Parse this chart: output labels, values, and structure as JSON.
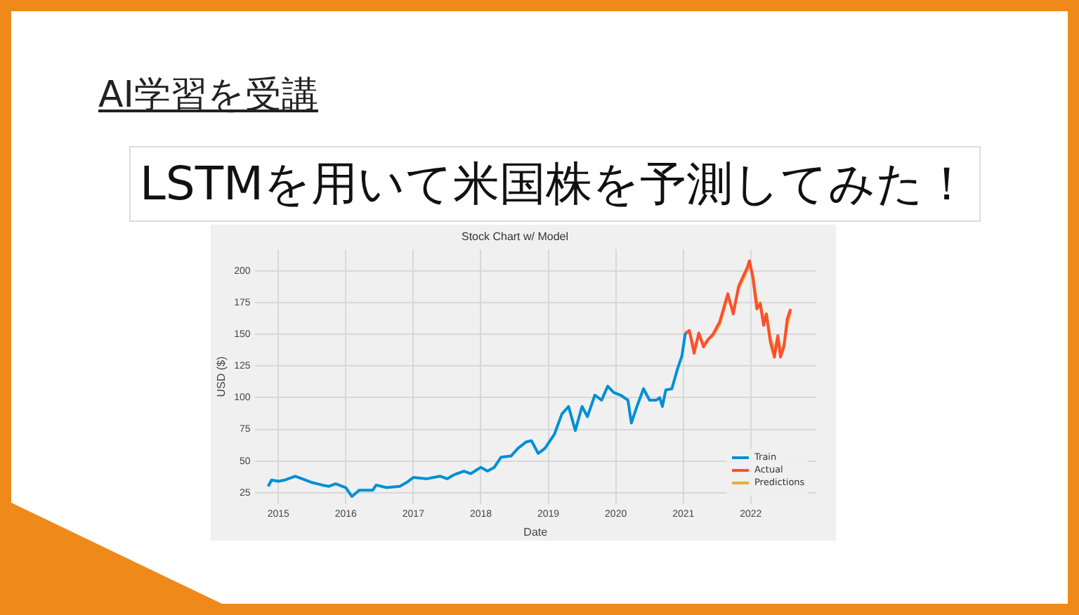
{
  "chart_data": {
    "type": "line",
    "title": "Stock Chart w/ Model",
    "xlabel": "Date",
    "ylabel": "USD ($)",
    "annotations": [
      "AI学習を受講",
      "LSTMを用いて米国株を予測してみた！"
    ],
    "xlim": [
      2014.65,
      2022.97
    ],
    "xticks": [
      2015,
      2016,
      2017,
      2018,
      2019,
      2020,
      2021,
      2022
    ],
    "ylim": [
      16,
      217
    ],
    "yticks": [
      25,
      50,
      75,
      100,
      125,
      150,
      175,
      200
    ],
    "grid": true,
    "legend": "bottom right",
    "marker": "none",
    "line_style": "solid",
    "series": [
      {
        "name": "Train",
        "color": "#008fd5",
        "x": [
          2014.85,
          2014.9,
          2015.0,
          2015.1,
          2015.25,
          2015.35,
          2015.5,
          2015.65,
          2015.75,
          2015.85,
          2016.0,
          2016.09,
          2016.2,
          2016.4,
          2016.45,
          2016.6,
          2016.8,
          2016.9,
          2017.0,
          2017.2,
          2017.4,
          2017.5,
          2017.6,
          2017.75,
          2017.85,
          2018.0,
          2018.1,
          2018.2,
          2018.3,
          2018.45,
          2018.55,
          2018.67,
          2018.75,
          2018.85,
          2018.95,
          2019.09,
          2019.2,
          2019.3,
          2019.4,
          2019.5,
          2019.58,
          2019.69,
          2019.79,
          2019.88,
          2019.97,
          2020.07,
          2020.18,
          2020.23,
          2020.32,
          2020.41,
          2020.5,
          2020.6,
          2020.65,
          2020.69,
          2020.74,
          2020.83,
          2020.91,
          2020.98,
          2021.03
        ],
        "values": [
          30,
          35,
          34,
          35,
          38,
          36,
          33,
          31,
          30,
          32,
          29,
          22,
          27,
          27,
          31,
          29,
          30,
          33,
          37,
          36,
          38,
          36,
          39,
          42,
          40,
          45,
          42,
          45,
          53,
          54,
          60,
          65,
          66,
          56,
          60,
          71,
          87,
          93,
          74,
          93,
          85,
          102,
          98,
          109,
          104,
          102,
          98,
          80,
          94,
          107,
          98,
          98,
          100,
          93,
          106,
          107,
          122,
          133,
          151
        ]
      },
      {
        "name": "Actual",
        "color": "#fc4f30",
        "x": [
          2021.03,
          2021.09,
          2021.16,
          2021.23,
          2021.3,
          2021.37,
          2021.44,
          2021.54,
          2021.66,
          2021.74,
          2021.82,
          2021.95,
          2021.98,
          2022.03,
          2022.09,
          2022.14,
          2022.19,
          2022.23,
          2022.29,
          2022.35,
          2022.4,
          2022.44,
          2022.49,
          2022.54,
          2022.59
        ],
        "values": [
          151,
          153,
          135,
          151,
          140,
          146,
          150,
          160,
          182,
          166,
          188,
          203,
          208,
          195,
          170,
          174,
          157,
          166,
          144,
          132,
          149,
          132,
          140,
          162,
          170
        ]
      },
      {
        "name": "Predictions",
        "color": "#e5ae38",
        "x": [
          2021.03,
          2021.09,
          2021.16,
          2021.23,
          2021.3,
          2021.37,
          2021.44,
          2021.54,
          2021.66,
          2021.74,
          2021.82,
          2021.95,
          2021.98,
          2022.03,
          2022.09,
          2022.14,
          2022.19,
          2022.23,
          2022.29,
          2022.35,
          2022.4,
          2022.44,
          2022.49,
          2022.54,
          2022.59
        ],
        "values": [
          150,
          152,
          139,
          149,
          142,
          146,
          149,
          158,
          180,
          168,
          186,
          201,
          206,
          197,
          174,
          175,
          160,
          166,
          147,
          137,
          148,
          137,
          141,
          158,
          168
        ]
      }
    ]
  }
}
